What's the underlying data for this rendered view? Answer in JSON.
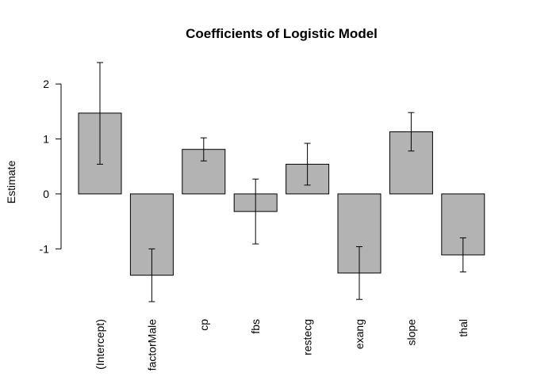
{
  "chart_data": {
    "type": "bar",
    "title": "Coefficients of Logistic Model",
    "xlabel": "",
    "ylabel": "Estimate",
    "categories": [
      "(Intercept)",
      "factorMale",
      "cp",
      "fbs",
      "restecg",
      "exang",
      "slope",
      "thal"
    ],
    "values": [
      1.47,
      -1.48,
      0.81,
      -0.32,
      0.54,
      -1.44,
      1.13,
      -1.11
    ],
    "error_low": [
      0.54,
      -1.96,
      0.6,
      -0.91,
      0.16,
      -1.92,
      0.78,
      -1.42
    ],
    "error_high": [
      2.39,
      -1.0,
      1.02,
      0.27,
      0.92,
      -0.96,
      1.48,
      -0.8
    ],
    "yticks": [
      -1,
      0,
      1,
      2
    ],
    "ytick_labels": [
      "-1",
      "0",
      "1",
      "2"
    ],
    "ylim": [
      -1.96,
      2.39
    ],
    "grid": false,
    "legend": "none",
    "bar_color": "#b3b3b3",
    "edge_color": "#000000"
  }
}
